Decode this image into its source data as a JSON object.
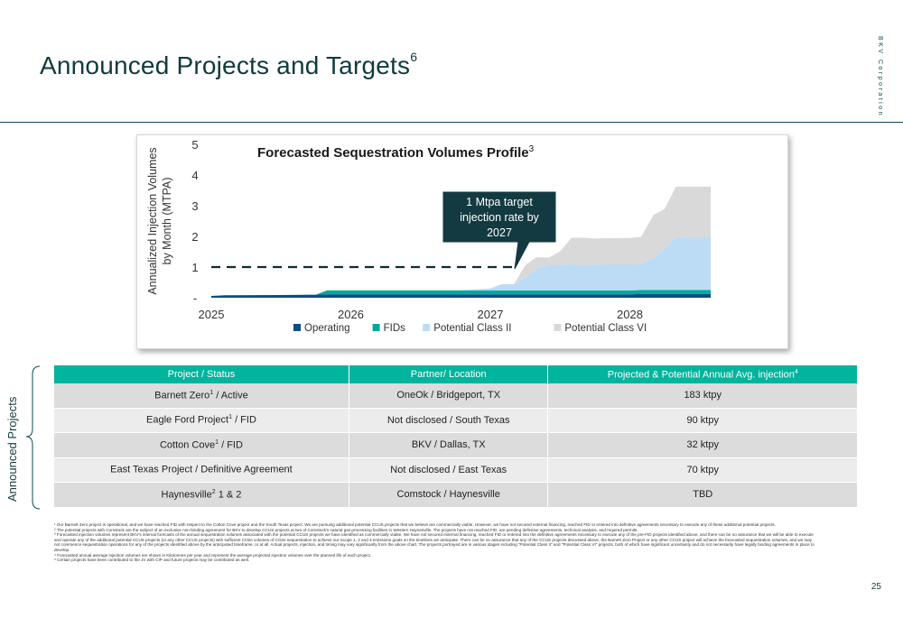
{
  "page": {
    "title": "Announced Projects and Targets",
    "title_sup": "6",
    "brand": "BKV Corporation",
    "page_number": "25"
  },
  "chart_data": {
    "type": "area",
    "title": "Forecasted Sequestration Volumes Profile",
    "title_sup": "3",
    "ylabel_line1": "Annualized Injection Volumes",
    "ylabel_line2": "by Month (MTPA)",
    "y_ticks": [
      "-",
      "1",
      "2",
      "3",
      "4",
      "5"
    ],
    "ylim": [
      0,
      5
    ],
    "x_ticks": [
      "2025",
      "2026",
      "2027",
      "2028"
    ],
    "xlim": [
      2025.0,
      2029.0
    ],
    "stacked": true,
    "x": [
      2025.0,
      2025.1,
      2025.5,
      2025.75,
      2025.83,
      2026.0,
      2026.5,
      2026.75,
      2027.0,
      2027.08,
      2027.17,
      2027.25,
      2027.33,
      2027.42,
      2027.5,
      2027.58,
      2027.67,
      2027.75,
      2027.83,
      2028.0,
      2028.08,
      2028.17,
      2028.25,
      2028.33,
      2028.42,
      2028.5,
      2028.58
    ],
    "series": [
      {
        "name": "Operating",
        "color": "#0f4c81",
        "values": [
          0.06,
          0.08,
          0.09,
          0.1,
          0.11,
          0.11,
          0.11,
          0.11,
          0.11,
          0.11,
          0.11,
          0.11,
          0.11,
          0.11,
          0.11,
          0.11,
          0.11,
          0.11,
          0.11,
          0.11,
          0.12,
          0.12,
          0.12,
          0.12,
          0.12,
          0.12,
          0.12
        ]
      },
      {
        "name": "FIDs",
        "color": "#00a99d",
        "values": [
          0.0,
          0.0,
          0.0,
          0.0,
          0.13,
          0.13,
          0.13,
          0.13,
          0.13,
          0.13,
          0.13,
          0.13,
          0.13,
          0.13,
          0.13,
          0.13,
          0.13,
          0.13,
          0.13,
          0.13,
          0.13,
          0.13,
          0.13,
          0.13,
          0.13,
          0.13,
          0.13
        ]
      },
      {
        "name": "Potential Class II",
        "color": "#bcdcf5",
        "values": [
          0.0,
          0.0,
          0.0,
          0.0,
          0.0,
          0.0,
          0.0,
          0.0,
          0.06,
          0.2,
          0.2,
          0.42,
          0.7,
          0.82,
          0.82,
          0.86,
          0.82,
          0.84,
          0.85,
          0.85,
          0.86,
          1.05,
          1.35,
          1.72,
          1.73,
          1.73,
          1.73
        ]
      },
      {
        "name": "Potential Class VI",
        "color": "#d9d9d9",
        "values": [
          0.0,
          0.0,
          0.0,
          0.0,
          0.0,
          0.0,
          0.0,
          0.0,
          0.0,
          0.0,
          0.0,
          0.4,
          0.38,
          0.25,
          0.45,
          0.85,
          0.9,
          0.85,
          0.85,
          0.86,
          0.87,
          1.4,
          1.3,
          1.65,
          1.64,
          1.64,
          1.64
        ]
      }
    ],
    "target_line": {
      "value": 1.0,
      "x_start": 2025.0,
      "x_end": 2027.2
    },
    "callout": {
      "lines": [
        "1 Mtpa target",
        "injection rate by",
        "2027"
      ]
    },
    "legend_position": "bottom"
  },
  "table": {
    "headers": [
      "Project / Status",
      "Partner/ Location",
      "Projected & Potential Annual Avg. injection"
    ],
    "header_sup": "4",
    "side_label": "Announced Projects",
    "rows": [
      {
        "project_pre": "Barnett Zero",
        "sup": "1",
        "project_post": " / Active",
        "partner": "OneOk / Bridgeport, TX",
        "injection": "183 ktpy"
      },
      {
        "project_pre": "Eagle Ford Project",
        "sup": "1",
        "project_post": " / FID",
        "partner": "Not disclosed / South Texas",
        "injection": "90 ktpy"
      },
      {
        "project_pre": "Cotton Cove",
        "sup": "1",
        "project_post": " / FID",
        "partner": "BKV / Dallas, TX",
        "injection": "32 ktpy"
      },
      {
        "project_pre": "East Texas Project / Definitive Agreement",
        "sup": "",
        "project_post": "",
        "partner": "Not disclosed / East Texas",
        "injection": "70 ktpy"
      },
      {
        "project_pre": "Haynesville",
        "sup": "2",
        "project_post": " 1 & 2",
        "partner": "Comstock / Haynesville",
        "injection": "TBD"
      }
    ]
  },
  "footnotes": [
    "¹ Our Barnett Zero project is operational, and we have reached FID with respect to the Cotton Cove project and the South Texas project. We are pursuing additional potential CCUS projects that we believe are commercially viable. However, we have not secured external financing, reached FID or entered into definitive agreements necessary to execute any of these additional potential projects.",
    "² The potential projects with Comstock are the subject of an exclusive non-binding agreement for BKV to develop CCUS projects at two of Comstock's natural gas processing facilities in Western Haynesville. The projects have not reached FID, are pending definitive agreements, technical analysis, and required permits.",
    "³ Forecasted injection volumes represent BKV's internal forecasts of the annual sequestration volumes associated with the potential CCUS projects we have identified as commercially viable. We have not secured external financing, reached FID or entered into the definitive agreements necessary to execute any of the pre-FID projects identified above, and there can be no assurance that we will be able to execute and operate any of the additional potential CCUS projects (or any other CCUS projects) with sufficient CO2e volumes of CO2e sequestration to achieve our Scope 1, 2 and 3 emissions goals on the timelines we anticipate. There can be no assurance that any of the CCUS projects discussed above, the Barnett Zero Project or any other CCUS project will achieve the forecasted sequestration volumes, and we may not commence sequestration operations for any of the projects identified above by the anticipated timeframe, or at all. Actual projects, injection, and timing may vary significantly from the above chart. The projects portrayed are in various stages including \"Potential Class II\" and \"Potential Class VI\" projects, both of which have significant uncertainty and do not necessarily have legally binding agreements in place to develop.",
    "⁴ Forecasted annual average injection volumes are shown in Kilotonnes per year and represent the average projected injection volumes over the planned life of each project.",
    "⁵ Certain projects have been contributed to the JV with CIP and future projects may be contributed as well."
  ]
}
